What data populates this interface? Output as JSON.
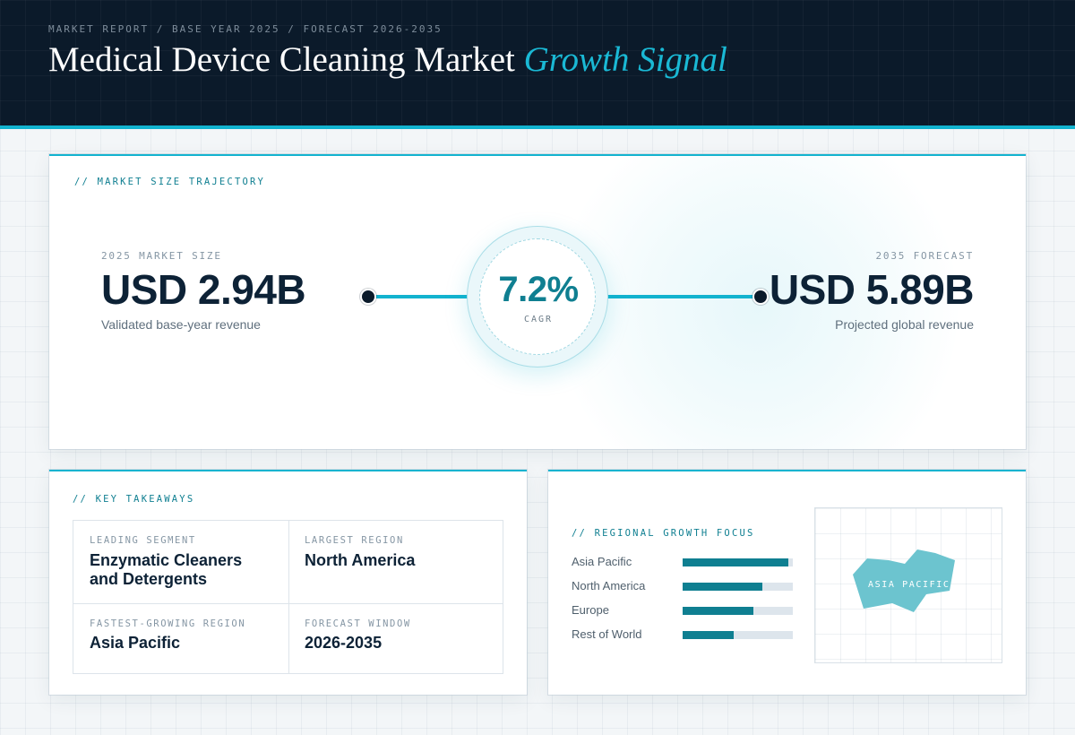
{
  "header": {
    "breadcrumb": "MARKET REPORT / BASE YEAR 2025 / FORECAST 2026-2035",
    "title": "Medical Device Cleaning Market",
    "title_accent": "Growth Signal"
  },
  "trajectory": {
    "label": "// MARKET SIZE TRAJECTORY",
    "start": {
      "label": "2025 MARKET SIZE",
      "value": "USD 2.94B",
      "description": "Validated base-year revenue"
    },
    "cagr": {
      "value": "7.2%",
      "label": "CAGR"
    },
    "end": {
      "label": "2035 FORECAST",
      "value": "USD 5.89B",
      "description": "Projected global revenue"
    }
  },
  "takeaways": {
    "label": "// KEY TAKEAWAYS",
    "items": [
      {
        "label": "LEADING SEGMENT",
        "value": "Enzymatic Cleaners and Detergents"
      },
      {
        "label": "LARGEST REGION",
        "value": "North America"
      },
      {
        "label": "FASTEST-GROWING REGION",
        "value": "Asia Pacific"
      },
      {
        "label": "FORECAST WINDOW",
        "value": "2026-2035"
      }
    ]
  },
  "regional": {
    "label": "// REGIONAL GROWTH FOCUS",
    "bars": [
      {
        "name": "Asia Pacific",
        "value": 0.96
      },
      {
        "name": "North America",
        "value": 0.72
      },
      {
        "name": "Europe",
        "value": 0.64
      },
      {
        "name": "Rest of World",
        "value": 0.46
      }
    ],
    "map_label": "ASIA PACIFIC"
  },
  "colors": {
    "header_bg": "#0b1a2a",
    "accent": "#12b3cf",
    "accent_dark": "#0f7f91",
    "text_dark": "#0d2236",
    "map_shape": "#6cc4cf"
  }
}
